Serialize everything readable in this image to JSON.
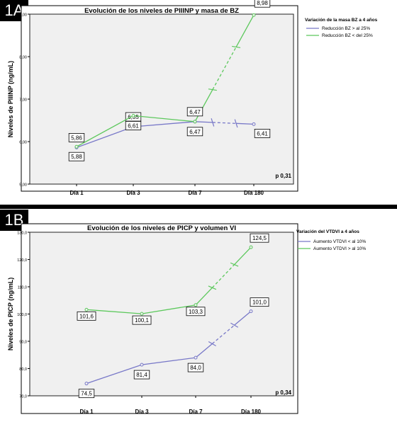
{
  "panels": [
    {
      "label": "1A"
    },
    {
      "label": "1B"
    }
  ],
  "colors": {
    "series_a": "#7878c8",
    "series_b": "#5cc85c"
  },
  "chart_data": [
    {
      "type": "line",
      "title": "Evolución de los niveles de PIIINP y masa de BZ",
      "ylabel": "Niveles de PIIINP (ng/mL)",
      "xlabel": "",
      "categories": [
        "Día 1",
        "Día 3",
        "Día 7",
        "Día 180"
      ],
      "ylim": [
        5.0,
        9.0
      ],
      "yticks": [
        "5,00",
        "6,00",
        "7,00",
        "8,00",
        "9,00"
      ],
      "grid": false,
      "legend_title": "Variación de la masa BZ a 4 años",
      "legend_position": "right",
      "p_value": "p 0,31",
      "series": [
        {
          "name": "Reducción BZ > al 25%",
          "color": "#7878c8",
          "values": [
            5.86,
            6.35,
            6.47,
            6.41
          ],
          "labels": [
            "5,86",
            "6,35",
            "6,47",
            "6,41"
          ]
        },
        {
          "name": "Reducción BZ < del 25%",
          "color": "#5cc85c",
          "values": [
            5.88,
            6.61,
            6.47,
            8.98
          ],
          "labels": [
            "5,88",
            "6,61",
            "6,47",
            "8,98"
          ]
        }
      ]
    },
    {
      "type": "line",
      "title": "Evolución de los niveles de PICP y volumen VI",
      "ylabel": "Niveles de PICP (ng/mL)",
      "xlabel": "",
      "categories": [
        "Día 1",
        "Día 3",
        "Día 7",
        "Día 180"
      ],
      "ylim": [
        70.0,
        130.0
      ],
      "yticks": [
        "70,0",
        "80,0",
        "90,0",
        "100,0",
        "110,0",
        "120,0",
        "130,0"
      ],
      "grid": false,
      "legend_title": "Variación del VTDVI a 4 años",
      "legend_position": "right",
      "p_value": "p 0,34",
      "series": [
        {
          "name": "Aumento VTDVI < al 10%",
          "color": "#7878c8",
          "values": [
            74.5,
            81.4,
            84.0,
            101.0
          ],
          "labels": [
            "74,5",
            "81,4",
            "84,0",
            "101,0"
          ]
        },
        {
          "name": "Aumento VTDVI > al 10%",
          "color": "#5cc85c",
          "values": [
            101.6,
            100.1,
            103.3,
            124.5
          ],
          "labels": [
            "101,6",
            "100,1",
            "103,3",
            "124,5"
          ]
        }
      ]
    }
  ]
}
